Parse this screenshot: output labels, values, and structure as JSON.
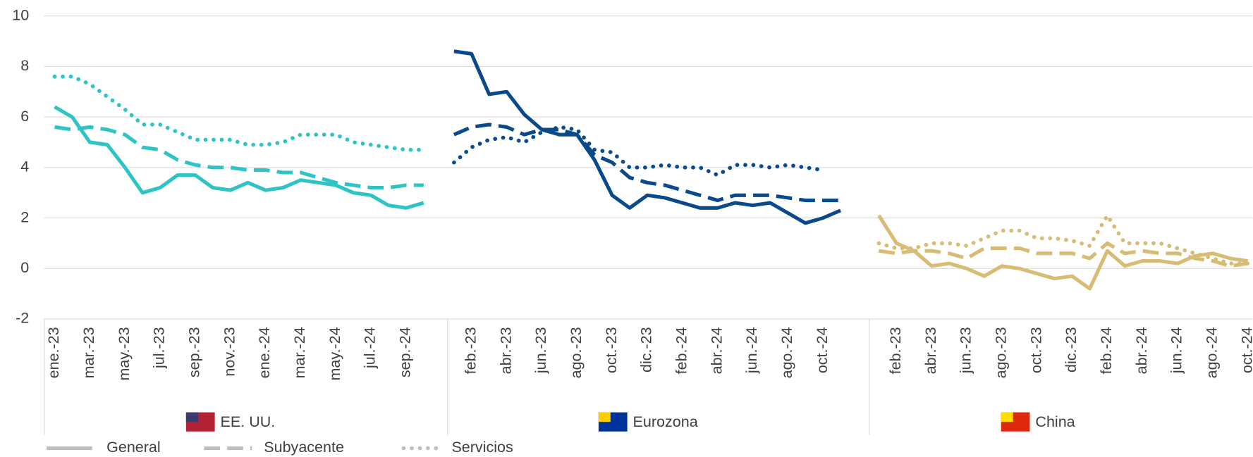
{
  "chart_data": {
    "type": "line",
    "ylim": [
      -2,
      10
    ],
    "yticks": [
      -2,
      0,
      2,
      4,
      6,
      8,
      10
    ],
    "grid": true,
    "legend": "bottom-left",
    "series_styles": [
      {
        "name": "General",
        "style": "solid"
      },
      {
        "name": "Subyacente",
        "style": "dashed"
      },
      {
        "name": "Servicios",
        "style": "dotted"
      }
    ],
    "panels": [
      {
        "name": "EE. UU.",
        "color": "#2ec4c6",
        "categories": [
          "ene.-23",
          null,
          "mar.-23",
          null,
          "may.-23",
          null,
          "jul.-23",
          null,
          "sep.-23",
          null,
          "nov.-23",
          null,
          "ene.-24",
          null,
          "mar.-24",
          null,
          "may.-24",
          null,
          "jul.-24",
          null,
          "sep.-24",
          null
        ],
        "series": [
          {
            "values": [
              6.4,
              6.0,
              5.0,
              4.9,
              4.0,
              3.0,
              3.2,
              3.7,
              3.7,
              3.2,
              3.1,
              3.4,
              3.1,
              3.2,
              3.5,
              3.4,
              3.3,
              3.0,
              2.9,
              2.5,
              2.4,
              2.6
            ]
          },
          {
            "values": [
              5.6,
              5.5,
              5.6,
              5.5,
              5.3,
              4.8,
              4.7,
              4.3,
              4.1,
              4.0,
              4.0,
              3.9,
              3.9,
              3.8,
              3.8,
              3.6,
              3.4,
              3.3,
              3.2,
              3.2,
              3.3,
              3.3
            ]
          },
          {
            "values": [
              7.6,
              7.6,
              7.3,
              6.8,
              6.3,
              5.7,
              5.7,
              5.4,
              5.1,
              5.1,
              5.1,
              4.9,
              4.9,
              5.0,
              5.3,
              5.3,
              5.3,
              5.0,
              4.9,
              4.8,
              4.7,
              4.7
            ]
          }
        ]
      },
      {
        "name": "Eurozona",
        "color": "#0a4a8a",
        "categories": [
          null,
          "feb.-23",
          null,
          "abr.-23",
          null,
          "jun.-23",
          null,
          "ago.-23",
          null,
          "oct.-23",
          null,
          "dic.-23",
          null,
          "feb.-24",
          null,
          "abr.-24",
          null,
          "jun.-24",
          null,
          "ago.-24",
          null,
          "oct.-24",
          null
        ],
        "series": [
          {
            "values": [
              8.6,
              8.5,
              6.9,
              7.0,
              6.1,
              5.5,
              5.3,
              5.3,
              4.3,
              2.9,
              2.4,
              2.9,
              2.8,
              2.6,
              2.4,
              2.4,
              2.6,
              2.5,
              2.6,
              2.2,
              1.8,
              2.0,
              2.3
            ]
          },
          {
            "values": [
              5.3,
              5.6,
              5.7,
              5.6,
              5.3,
              5.5,
              5.5,
              5.3,
              4.5,
              4.2,
              3.6,
              3.4,
              3.3,
              3.1,
              2.9,
              2.7,
              2.9,
              2.9,
              2.9,
              2.8,
              2.7,
              2.7,
              2.7
            ]
          },
          {
            "values": [
              4.2,
              4.8,
              5.1,
              5.2,
              5.0,
              5.4,
              5.6,
              5.5,
              4.7,
              4.6,
              4.0,
              4.0,
              4.1,
              4.0,
              4.0,
              3.7,
              4.1,
              4.1,
              4.0,
              4.1,
              4.0,
              3.9,
              null
            ]
          }
        ]
      },
      {
        "name": "China",
        "color": "#d8bc75",
        "categories": [
          null,
          "feb.-23",
          null,
          "abr.-23",
          null,
          "jun.-23",
          null,
          "ago.-23",
          null,
          "oct.-23",
          null,
          "dic.-23",
          null,
          "feb.-24",
          null,
          "abr.-24",
          null,
          "jun.-24",
          null,
          "ago.-24",
          null,
          "oct.-24"
        ],
        "series": [
          {
            "values": [
              2.1,
              1.0,
              0.7,
              0.1,
              0.2,
              0.0,
              -0.3,
              0.1,
              0.0,
              -0.2,
              -0.4,
              -0.3,
              -0.8,
              0.7,
              0.1,
              0.3,
              0.3,
              0.2,
              0.5,
              0.6,
              0.4,
              0.3
            ]
          },
          {
            "values": [
              0.7,
              0.6,
              0.7,
              0.7,
              0.6,
              0.4,
              0.8,
              0.8,
              0.8,
              0.6,
              0.6,
              0.6,
              0.4,
              1.0,
              0.6,
              0.7,
              0.6,
              0.6,
              0.4,
              0.3,
              0.1,
              0.2
            ]
          },
          {
            "values": [
              1.0,
              0.8,
              0.8,
              1.0,
              1.0,
              0.9,
              1.2,
              1.5,
              1.5,
              1.2,
              1.2,
              1.1,
              0.9,
              2.1,
              1.0,
              1.0,
              1.0,
              0.8,
              0.6,
              0.4,
              0.2,
              0.2
            ]
          }
        ]
      }
    ]
  }
}
